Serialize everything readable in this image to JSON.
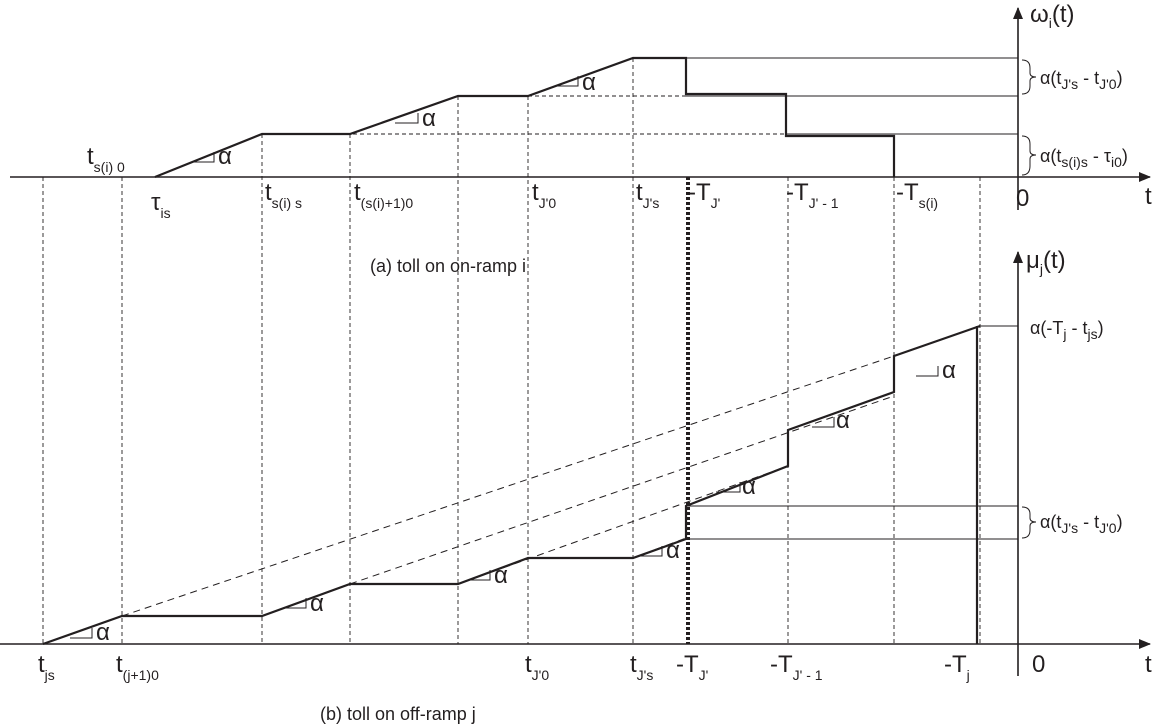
{
  "panel_a": {
    "caption": "(a) toll on on-ramp i",
    "y_axis": {
      "main": "ω",
      "sub": "i",
      "tail": "(t)"
    },
    "x_axis": "t",
    "origin": "0",
    "slope": "α",
    "labels_above": [
      {
        "main": "t",
        "sub": "s(i) 0"
      }
    ],
    "labels_below": [
      {
        "main": "τ",
        "sub": "is"
      },
      {
        "main": "t",
        "sub": "s(i) s"
      },
      {
        "main": "t",
        "sub": "(s(i)+1)0"
      },
      {
        "main": "t",
        "sub": "J'0"
      },
      {
        "main": "t",
        "sub": "J's"
      },
      {
        "main": "-T",
        "sub": "J'"
      },
      {
        "main": "-T",
        "sub": "J' - 1"
      },
      {
        "main": "-T",
        "sub": "s(i)"
      }
    ],
    "brace_top": {
      "pre": "α(t",
      "s1": "J's",
      "mid": " - t",
      "s2": "J'0",
      "post": ")"
    },
    "brace_bottom": {
      "pre": "α(t",
      "s1": "s(i)s",
      "mid": " - τ",
      "s2": "i0",
      "post": ")"
    }
  },
  "panel_b": {
    "caption": "(b) toll on off-ramp j",
    "y_axis": {
      "main": "μ",
      "sub": "j",
      "tail": "(t)"
    },
    "x_axis": "t",
    "origin": "0",
    "slope": "α",
    "labels_below": [
      {
        "main": "t",
        "sub": "js"
      },
      {
        "main": "t",
        "sub": "(j+1)0"
      },
      {
        "main": "t",
        "sub": "J'0"
      },
      {
        "main": "t",
        "sub": "J's"
      },
      {
        "main": "-T",
        "sub": "J'"
      },
      {
        "main": "-T",
        "sub": "J' - 1"
      },
      {
        "main": "-T",
        "sub": "j"
      }
    ],
    "brace_mid": {
      "pre": "α(t",
      "s1": "J's",
      "mid": " - t",
      "s2": "J'0",
      "post": ")"
    },
    "top_value": {
      "pre": "α(-T",
      "s1": "j",
      "mid": " - t",
      "s2": "js",
      "post": ")"
    }
  }
}
